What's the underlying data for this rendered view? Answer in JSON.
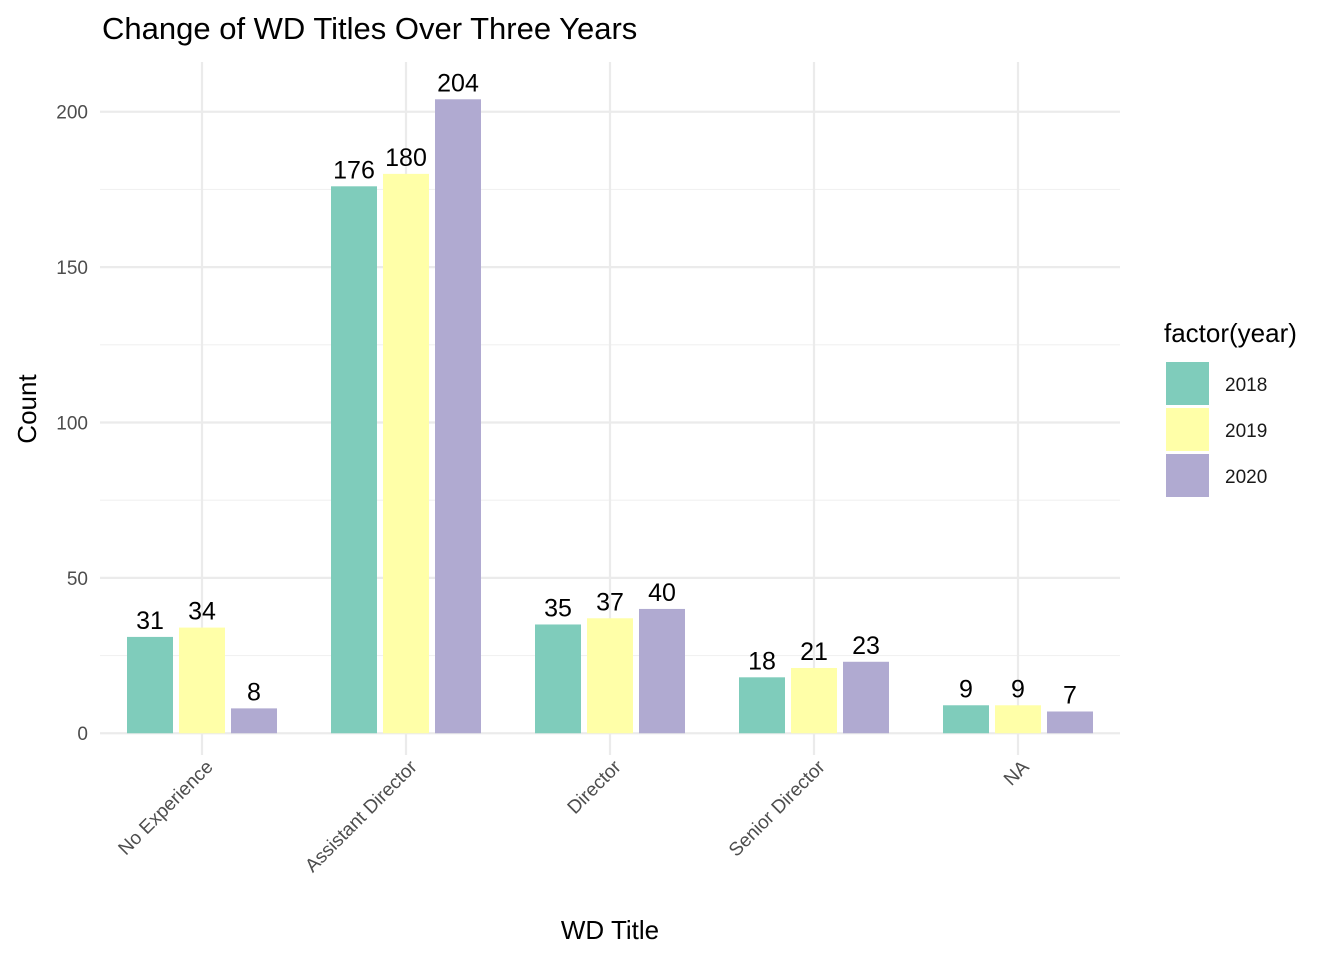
{
  "chart_data": {
    "type": "bar",
    "title": "Change of WD Titles Over Three Years",
    "xlabel": "WD Title",
    "ylabel": "Count",
    "categories": [
      "No Experience",
      "Assistant Director",
      "Director",
      "Senior Director",
      "NA"
    ],
    "series": [
      {
        "name": "2018",
        "color": "#7fccbb",
        "values": [
          31,
          176,
          35,
          18,
          9
        ]
      },
      {
        "name": "2019",
        "color": "#ffffa8",
        "values": [
          34,
          180,
          37,
          21,
          9
        ]
      },
      {
        "name": "2020",
        "color": "#b0aad1",
        "values": [
          8,
          204,
          40,
          23,
          7
        ]
      }
    ],
    "yticks": [
      0,
      50,
      100,
      150,
      200
    ],
    "ylim": [
      -7,
      216
    ],
    "grid": true,
    "legend": {
      "title": "factor(year)",
      "placement": "right"
    },
    "data_labels": true
  }
}
